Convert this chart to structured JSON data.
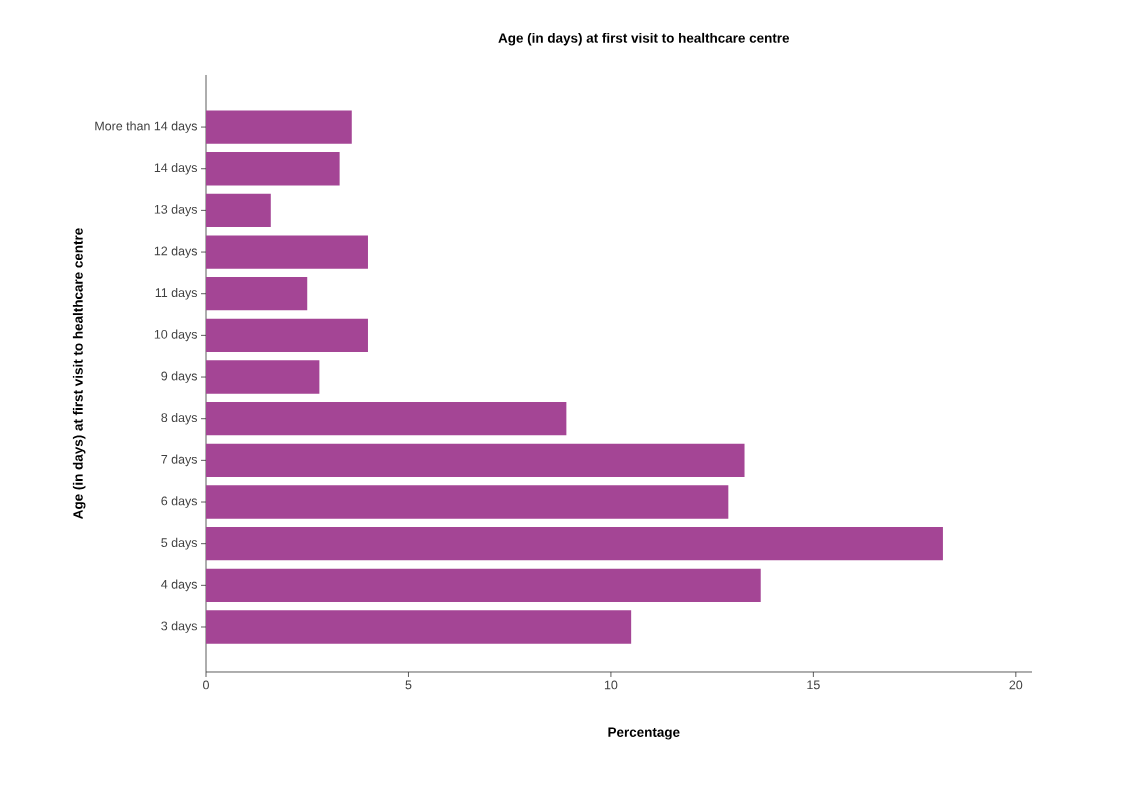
{
  "chart_data": {
    "type": "bar",
    "orientation": "horizontal",
    "title": "Age (in days) at first visit to healthcare centre",
    "xlabel": "Percentage",
    "ylabel": "Age (in days) at first visit to healthcare centre",
    "categories": [
      "More than 14 days",
      "14 days",
      "13 days",
      "12 days",
      "11 days",
      "10 days",
      "9 days",
      "8 days",
      "7 days",
      "6 days",
      "5 days",
      "4 days",
      "3 days"
    ],
    "values": [
      3.6,
      3.3,
      1.6,
      4.0,
      2.5,
      4.0,
      2.8,
      8.9,
      13.3,
      12.9,
      18.2,
      13.7,
      10.5
    ],
    "color": "#a44595",
    "xlim": [
      0,
      20.4
    ],
    "xticks": [
      0,
      5,
      10,
      15,
      20
    ],
    "grid": false
  }
}
